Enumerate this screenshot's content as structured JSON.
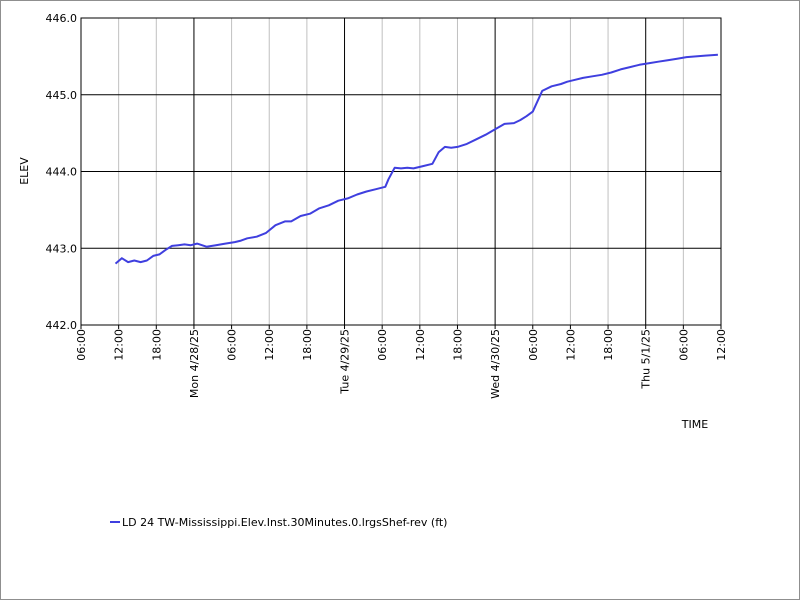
{
  "chart_data": {
    "type": "line",
    "title": "",
    "xlabel": "TIME",
    "ylabel": "ELEV",
    "ylim": [
      442.0,
      446.0
    ],
    "yticks": [
      442.0,
      443.0,
      444.0,
      445.0,
      446.0
    ],
    "ytick_labels": [
      "442.0",
      "443.0",
      "444.0",
      "445.0",
      "446.0"
    ],
    "xlim": [
      "2025-04-27T06:00",
      "2025-05-01T12:00"
    ],
    "xtick_labels": [
      "06:00",
      "12:00",
      "18:00",
      "Mon 4/28/25",
      "06:00",
      "12:00",
      "18:00",
      "Tue 4/29/25",
      "06:00",
      "12:00",
      "18:00",
      "Wed 4/30/25",
      "06:00",
      "12:00",
      "18:00",
      "Thu 5/1/25",
      "06:00",
      "12:00"
    ],
    "grid": true,
    "legend_position": "bottom-left",
    "series": [
      {
        "name": "LD 24 TW-Mississippi.Elev.Inst.30Minutes.0.lrgsShef-rev (ft)",
        "color": "#3f3fdf",
        "x": [
          "2025-04-27T11:30",
          "2025-04-27T12:30",
          "2025-04-27T13:30",
          "2025-04-27T14:30",
          "2025-04-27T15:30",
          "2025-04-27T16:30",
          "2025-04-27T17:30",
          "2025-04-27T18:30",
          "2025-04-27T19:30",
          "2025-04-27T20:30",
          "2025-04-27T21:30",
          "2025-04-27T22:30",
          "2025-04-27T23:30",
          "2025-04-28T00:30",
          "2025-04-28T02:00",
          "2025-04-28T03:30",
          "2025-04-28T05:00",
          "2025-04-28T06:30",
          "2025-04-28T07:30",
          "2025-04-28T08:30",
          "2025-04-28T10:00",
          "2025-04-28T11:30",
          "2025-04-28T13:00",
          "2025-04-28T14:30",
          "2025-04-28T15:30",
          "2025-04-28T17:00",
          "2025-04-28T18:30",
          "2025-04-28T20:00",
          "2025-04-28T21:30",
          "2025-04-28T23:00",
          "2025-04-29T00:30",
          "2025-04-29T02:00",
          "2025-04-29T03:30",
          "2025-04-29T05:00",
          "2025-04-29T06:30",
          "2025-04-29T07:00",
          "2025-04-29T08:00",
          "2025-04-29T09:00",
          "2025-04-29T10:00",
          "2025-04-29T11:00",
          "2025-04-29T12:30",
          "2025-04-29T14:00",
          "2025-04-29T15:00",
          "2025-04-29T16:00",
          "2025-04-29T17:00",
          "2025-04-29T18:00",
          "2025-04-29T19:30",
          "2025-04-29T21:00",
          "2025-04-29T22:30",
          "2025-04-30T00:00",
          "2025-04-30T01:30",
          "2025-04-30T03:00",
          "2025-04-30T04:00",
          "2025-04-30T05:00",
          "2025-04-30T06:00",
          "2025-04-30T07:30",
          "2025-04-30T09:00",
          "2025-04-30T10:30",
          "2025-04-30T11:30",
          "2025-04-30T12:30",
          "2025-04-30T14:00",
          "2025-04-30T15:30",
          "2025-04-30T17:00",
          "2025-04-30T18:30",
          "2025-04-30T20:00",
          "2025-04-30T21:30",
          "2025-04-30T23:00",
          "2025-05-01T00:30",
          "2025-05-01T02:00",
          "2025-05-01T03:30",
          "2025-05-01T05:00",
          "2025-05-01T06:30",
          "2025-05-01T08:00",
          "2025-05-01T09:30",
          "2025-05-01T11:30"
        ],
        "y": [
          442.8,
          442.87,
          442.82,
          442.84,
          442.82,
          442.84,
          442.9,
          442.92,
          442.98,
          443.03,
          443.04,
          443.05,
          443.04,
          443.06,
          443.02,
          443.04,
          443.06,
          443.08,
          443.1,
          443.13,
          443.15,
          443.2,
          443.3,
          443.35,
          443.35,
          443.42,
          443.45,
          443.52,
          443.56,
          443.62,
          443.65,
          443.7,
          443.74,
          443.77,
          443.8,
          443.9,
          444.05,
          444.04,
          444.05,
          444.04,
          444.07,
          444.1,
          444.25,
          444.32,
          444.31,
          444.32,
          444.36,
          444.42,
          444.48,
          444.55,
          444.62,
          444.63,
          444.67,
          444.72,
          444.78,
          445.05,
          445.11,
          445.14,
          445.17,
          445.19,
          445.22,
          445.24,
          445.26,
          445.29,
          445.33,
          445.36,
          445.39,
          445.41,
          445.43,
          445.45,
          445.47,
          445.49,
          445.5,
          445.51,
          445.52
        ]
      }
    ]
  }
}
